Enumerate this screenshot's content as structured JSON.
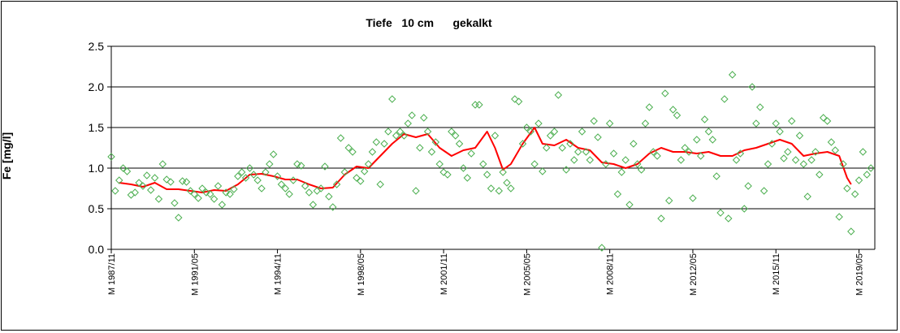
{
  "chart_data": {
    "type": "scatter",
    "title": "Tiefe   10 cm      gekalkt",
    "ylabel": "Fe [mg/l]",
    "xlabel": "",
    "ylim": [
      0.0,
      2.5
    ],
    "yticks": [
      "0.0",
      "0.5",
      "1.0",
      "1.5",
      "2.0",
      "2.5"
    ],
    "xlim": [
      "1987-11",
      "2020-01"
    ],
    "xticks": [
      {
        "label": "M 1987/11",
        "date": "1987-11"
      },
      {
        "label": "M 1991/05",
        "date": "1991-05"
      },
      {
        "label": "M 1994/11",
        "date": "1994-11"
      },
      {
        "label": "M 1998/05",
        "date": "1998-05"
      },
      {
        "label": "M 2001/11",
        "date": "2001-11"
      },
      {
        "label": "M 2005/05",
        "date": "2005-05"
      },
      {
        "label": "M 2008/11",
        "date": "2008-11"
      },
      {
        "label": "M 2012/05",
        "date": "2012-05"
      },
      {
        "label": "M 2015/11",
        "date": "2015-11"
      },
      {
        "label": "M 2019/05",
        "date": "2019-05"
      }
    ],
    "grid": true,
    "series": [
      {
        "kind": "markers",
        "marker": "diamond",
        "color": "#4caf50",
        "points": [
          [
            "1987-11",
            1.14
          ],
          [
            "1988-01",
            0.72
          ],
          [
            "1988-03",
            0.85
          ],
          [
            "1988-05",
            1.0
          ],
          [
            "1988-07",
            0.96
          ],
          [
            "1988-09",
            0.67
          ],
          [
            "1988-11",
            0.7
          ],
          [
            "1989-01",
            0.82
          ],
          [
            "1989-03",
            0.78
          ],
          [
            "1989-05",
            0.91
          ],
          [
            "1989-07",
            0.73
          ],
          [
            "1989-09",
            0.88
          ],
          [
            "1989-11",
            0.62
          ],
          [
            "1990-01",
            1.05
          ],
          [
            "1990-03",
            0.86
          ],
          [
            "1990-05",
            0.83
          ],
          [
            "1990-07",
            0.57
          ],
          [
            "1990-09",
            0.39
          ],
          [
            "1990-11",
            0.84
          ],
          [
            "1991-01",
            0.83
          ],
          [
            "1991-03",
            0.72
          ],
          [
            "1991-05",
            0.68
          ],
          [
            "1991-07",
            0.63
          ],
          [
            "1991-09",
            0.75
          ],
          [
            "1991-11",
            0.7
          ],
          [
            "1992-01",
            0.68
          ],
          [
            "1992-03",
            0.62
          ],
          [
            "1992-05",
            0.78
          ],
          [
            "1992-07",
            0.55
          ],
          [
            "1992-09",
            0.7
          ],
          [
            "1992-11",
            0.68
          ],
          [
            "1993-01",
            0.74
          ],
          [
            "1993-03",
            0.9
          ],
          [
            "1993-05",
            0.95
          ],
          [
            "1993-07",
            0.88
          ],
          [
            "1993-09",
            1.0
          ],
          [
            "1993-11",
            0.92
          ],
          [
            "1994-01",
            0.85
          ],
          [
            "1994-03",
            0.75
          ],
          [
            "1994-05",
            0.95
          ],
          [
            "1994-07",
            1.05
          ],
          [
            "1994-09",
            1.17
          ],
          [
            "1994-11",
            0.9
          ],
          [
            "1995-01",
            0.8
          ],
          [
            "1995-03",
            0.75
          ],
          [
            "1995-05",
            0.68
          ],
          [
            "1995-07",
            0.85
          ],
          [
            "1995-09",
            1.05
          ],
          [
            "1995-11",
            1.03
          ],
          [
            "1996-01",
            0.78
          ],
          [
            "1996-03",
            0.7
          ],
          [
            "1996-05",
            0.55
          ],
          [
            "1996-07",
            0.72
          ],
          [
            "1996-09",
            0.75
          ],
          [
            "1996-11",
            1.02
          ],
          [
            "1997-01",
            0.65
          ],
          [
            "1997-03",
            0.52
          ],
          [
            "1997-05",
            0.8
          ],
          [
            "1997-07",
            1.37
          ],
          [
            "1997-09",
            0.95
          ],
          [
            "1997-11",
            1.25
          ],
          [
            "1998-01",
            1.2
          ],
          [
            "1998-03",
            0.88
          ],
          [
            "1998-05",
            0.84
          ],
          [
            "1998-07",
            0.96
          ],
          [
            "1998-09",
            1.05
          ],
          [
            "1998-11",
            1.2
          ],
          [
            "1999-01",
            1.32
          ],
          [
            "1999-03",
            0.8
          ],
          [
            "1999-05",
            1.3
          ],
          [
            "1999-07",
            1.45
          ],
          [
            "1999-09",
            1.85
          ],
          [
            "1999-11",
            1.4
          ],
          [
            "2000-01",
            1.45
          ],
          [
            "2000-03",
            1.4
          ],
          [
            "2000-05",
            1.55
          ],
          [
            "2000-07",
            1.65
          ],
          [
            "2000-09",
            0.72
          ],
          [
            "2000-11",
            1.25
          ],
          [
            "2001-01",
            1.62
          ],
          [
            "2001-03",
            1.45
          ],
          [
            "2001-05",
            1.2
          ],
          [
            "2001-07",
            1.32
          ],
          [
            "2001-09",
            1.05
          ],
          [
            "2001-11",
            0.95
          ],
          [
            "2002-01",
            0.92
          ],
          [
            "2002-03",
            1.45
          ],
          [
            "2002-05",
            1.4
          ],
          [
            "2002-07",
            1.3
          ],
          [
            "2002-09",
            1.0
          ],
          [
            "2002-11",
            0.88
          ],
          [
            "2003-01",
            1.18
          ],
          [
            "2003-03",
            1.78
          ],
          [
            "2003-05",
            1.78
          ],
          [
            "2003-07",
            1.05
          ],
          [
            "2003-09",
            0.92
          ],
          [
            "2003-11",
            0.75
          ],
          [
            "2004-01",
            1.4
          ],
          [
            "2004-03",
            0.72
          ],
          [
            "2004-05",
            0.95
          ],
          [
            "2004-07",
            0.82
          ],
          [
            "2004-09",
            0.75
          ],
          [
            "2004-11",
            1.85
          ],
          [
            "2005-01",
            1.82
          ],
          [
            "2005-03",
            1.3
          ],
          [
            "2005-05",
            1.5
          ],
          [
            "2005-07",
            1.45
          ],
          [
            "2005-09",
            1.05
          ],
          [
            "2005-11",
            1.55
          ],
          [
            "2006-01",
            0.96
          ],
          [
            "2006-03",
            1.25
          ],
          [
            "2006-05",
            1.4
          ],
          [
            "2006-07",
            1.45
          ],
          [
            "2006-09",
            1.9
          ],
          [
            "2006-11",
            1.25
          ],
          [
            "2007-01",
            0.98
          ],
          [
            "2007-03",
            1.3
          ],
          [
            "2007-05",
            1.1
          ],
          [
            "2007-07",
            1.2
          ],
          [
            "2007-09",
            1.45
          ],
          [
            "2007-11",
            1.2
          ],
          [
            "2008-01",
            1.1
          ],
          [
            "2008-03",
            1.58
          ],
          [
            "2008-05",
            1.38
          ],
          [
            "2008-07",
            0.02
          ],
          [
            "2008-09",
            1.05
          ],
          [
            "2008-11",
            1.55
          ],
          [
            "2009-01",
            1.18
          ],
          [
            "2009-03",
            0.68
          ],
          [
            "2009-05",
            0.95
          ],
          [
            "2009-07",
            1.1
          ],
          [
            "2009-09",
            0.55
          ],
          [
            "2009-11",
            1.3
          ],
          [
            "2010-01",
            1.05
          ],
          [
            "2010-03",
            0.98
          ],
          [
            "2010-05",
            1.55
          ],
          [
            "2010-07",
            1.75
          ],
          [
            "2010-09",
            1.2
          ],
          [
            "2010-11",
            1.15
          ],
          [
            "2011-01",
            0.38
          ],
          [
            "2011-03",
            1.92
          ],
          [
            "2011-05",
            0.6
          ],
          [
            "2011-07",
            1.72
          ],
          [
            "2011-09",
            1.65
          ],
          [
            "2011-11",
            1.1
          ],
          [
            "2012-01",
            1.25
          ],
          [
            "2012-03",
            1.2
          ],
          [
            "2012-05",
            0.63
          ],
          [
            "2012-07",
            1.35
          ],
          [
            "2012-09",
            1.15
          ],
          [
            "2012-11",
            1.6
          ],
          [
            "2013-01",
            1.45
          ],
          [
            "2013-03",
            1.35
          ],
          [
            "2013-05",
            0.9
          ],
          [
            "2013-07",
            0.45
          ],
          [
            "2013-09",
            1.85
          ],
          [
            "2013-11",
            0.38
          ],
          [
            "2014-01",
            2.15
          ],
          [
            "2014-03",
            1.1
          ],
          [
            "2014-05",
            1.18
          ],
          [
            "2014-07",
            0.5
          ],
          [
            "2014-09",
            0.78
          ],
          [
            "2014-11",
            2.0
          ],
          [
            "2015-01",
            1.55
          ],
          [
            "2015-03",
            1.75
          ],
          [
            "2015-05",
            0.72
          ],
          [
            "2015-07",
            1.05
          ],
          [
            "2015-09",
            1.3
          ],
          [
            "2015-11",
            1.55
          ],
          [
            "2016-01",
            1.45
          ],
          [
            "2016-03",
            1.12
          ],
          [
            "2016-05",
            1.2
          ],
          [
            "2016-07",
            1.58
          ],
          [
            "2016-09",
            1.1
          ],
          [
            "2016-11",
            1.4
          ],
          [
            "2017-01",
            1.05
          ],
          [
            "2017-03",
            0.65
          ],
          [
            "2017-05",
            1.1
          ],
          [
            "2017-07",
            1.2
          ],
          [
            "2017-09",
            0.92
          ],
          [
            "2017-11",
            1.62
          ],
          [
            "2018-01",
            1.58
          ],
          [
            "2018-03",
            1.32
          ],
          [
            "2018-05",
            1.22
          ],
          [
            "2018-07",
            0.4
          ],
          [
            "2018-09",
            1.05
          ],
          [
            "2018-11",
            0.75
          ],
          [
            "2019-01",
            0.22
          ],
          [
            "2019-03",
            0.68
          ],
          [
            "2019-05",
            0.85
          ],
          [
            "2019-07",
            1.2
          ],
          [
            "2019-09",
            0.92
          ],
          [
            "2019-11",
            1.0
          ]
        ]
      },
      {
        "kind": "line",
        "color": "#ff0000",
        "points": [
          [
            "1988-03",
            0.82
          ],
          [
            "1988-09",
            0.8
          ],
          [
            "1989-03",
            0.77
          ],
          [
            "1989-09",
            0.82
          ],
          [
            "1990-03",
            0.74
          ],
          [
            "1990-09",
            0.74
          ],
          [
            "1991-03",
            0.72
          ],
          [
            "1991-09",
            0.7
          ],
          [
            "1992-03",
            0.73
          ],
          [
            "1992-09",
            0.72
          ],
          [
            "1993-03",
            0.8
          ],
          [
            "1993-09",
            0.92
          ],
          [
            "1994-03",
            0.93
          ],
          [
            "1994-09",
            0.9
          ],
          [
            "1995-03",
            0.86
          ],
          [
            "1995-09",
            0.86
          ],
          [
            "1996-03",
            0.8
          ],
          [
            "1996-09",
            0.75
          ],
          [
            "1997-03",
            0.76
          ],
          [
            "1997-09",
            0.92
          ],
          [
            "1998-03",
            1.02
          ],
          [
            "1998-09",
            1.0
          ],
          [
            "1999-03",
            1.15
          ],
          [
            "1999-09",
            1.3
          ],
          [
            "2000-03",
            1.42
          ],
          [
            "2000-09",
            1.38
          ],
          [
            "2001-03",
            1.42
          ],
          [
            "2001-09",
            1.25
          ],
          [
            "2002-03",
            1.15
          ],
          [
            "2002-09",
            1.22
          ],
          [
            "2003-03",
            1.25
          ],
          [
            "2003-09",
            1.45
          ],
          [
            "2004-01",
            1.25
          ],
          [
            "2004-05",
            0.98
          ],
          [
            "2004-09",
            1.05
          ],
          [
            "2005-03",
            1.3
          ],
          [
            "2005-09",
            1.5
          ],
          [
            "2006-01",
            1.3
          ],
          [
            "2006-07",
            1.28
          ],
          [
            "2007-01",
            1.35
          ],
          [
            "2007-07",
            1.25
          ],
          [
            "2008-01",
            1.22
          ],
          [
            "2008-07",
            1.07
          ],
          [
            "2009-01",
            1.05
          ],
          [
            "2009-07",
            1.0
          ],
          [
            "2010-01",
            1.05
          ],
          [
            "2010-07",
            1.18
          ],
          [
            "2011-01",
            1.25
          ],
          [
            "2011-07",
            1.2
          ],
          [
            "2012-01",
            1.2
          ],
          [
            "2012-07",
            1.18
          ],
          [
            "2013-01",
            1.2
          ],
          [
            "2013-07",
            1.15
          ],
          [
            "2014-01",
            1.15
          ],
          [
            "2014-07",
            1.22
          ],
          [
            "2015-01",
            1.25
          ],
          [
            "2015-07",
            1.3
          ],
          [
            "2016-01",
            1.35
          ],
          [
            "2016-07",
            1.3
          ],
          [
            "2017-01",
            1.15
          ],
          [
            "2017-07",
            1.18
          ],
          [
            "2018-01",
            1.2
          ],
          [
            "2018-07",
            1.15
          ],
          [
            "2018-11",
            0.88
          ],
          [
            "2019-01",
            0.8
          ]
        ]
      }
    ]
  }
}
